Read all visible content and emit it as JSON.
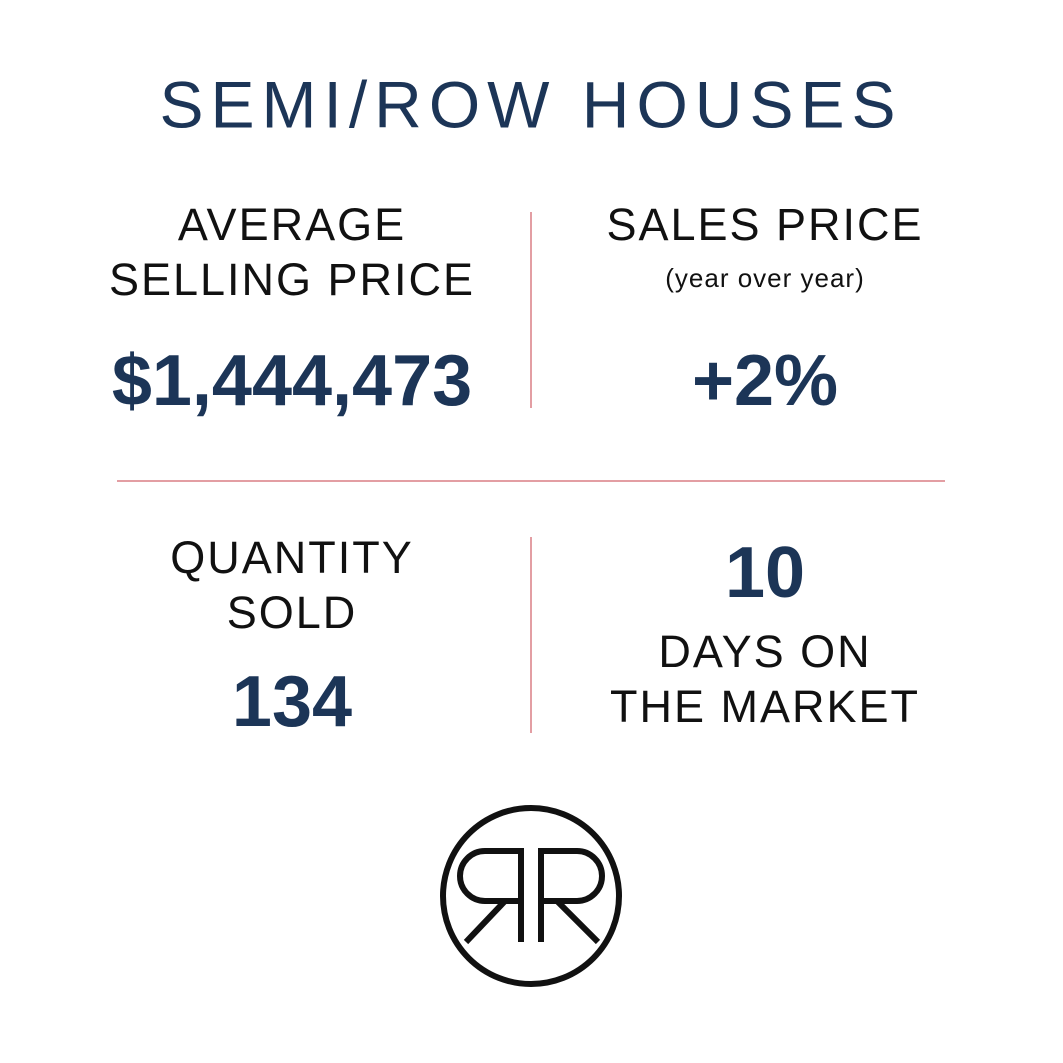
{
  "title": "SEMI/ROW HOUSES",
  "stats": [
    {
      "label_lines": [
        "AVERAGE",
        "SELLING PRICE"
      ],
      "value": "$1,444,473"
    },
    {
      "label_lines": [
        "SALES PRICE"
      ],
      "note": "(year over year)",
      "value": "+2%"
    },
    {
      "label_lines": [
        "QUANTITY",
        "SOLD"
      ],
      "value": "134"
    },
    {
      "value": "10",
      "label_lines": [
        "DAYS ON",
        "THE MARKET"
      ]
    }
  ]
}
